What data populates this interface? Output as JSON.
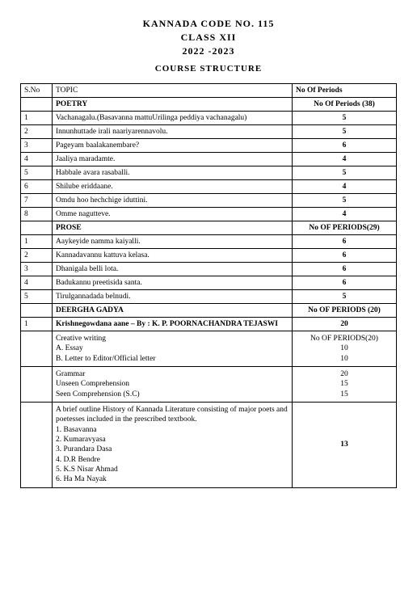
{
  "header": {
    "line1": "KANNADA  CODE  NO. 115",
    "line2": "CLASS  XII",
    "line3": "2022 -2023",
    "structure": "COURSE  STRUCTURE"
  },
  "table": {
    "head": {
      "sno": "S.No",
      "topic": "TOPIC",
      "periods": "No Of Periods"
    },
    "sections": {
      "poetry": {
        "title": "POETRY",
        "periods_label": "No Of Periods (38)",
        "rows": [
          {
            "sno": "1",
            "topic": "Vachanagalu.(Basavanna mattuUrilinga peddiya vachanagalu)",
            "periods": "5"
          },
          {
            "sno": "2",
            "topic": "Innunhuttade irali naariyarennavolu.",
            "periods": "5"
          },
          {
            "sno": "3",
            "topic": "Pageyam baalakanembare?",
            "periods": "6"
          },
          {
            "sno": "4",
            "topic": "Jaaliya maradamte.",
            "periods": "4"
          },
          {
            "sno": "5",
            "topic": "Habbale avara rasaballi.",
            "periods": "5"
          },
          {
            "sno": "6",
            "topic": "Shilube  eriddaane.",
            "periods": "4"
          },
          {
            "sno": "7",
            "topic": "Omdu hoo hechchige iduttini.",
            "periods": "5"
          },
          {
            "sno": "8",
            "topic": "Omme nagutteve.",
            "periods": "4"
          }
        ]
      },
      "prose": {
        "title": "PROSE",
        "periods_label": "No OF PERIODS(29)",
        "rows": [
          {
            "sno": "1",
            "topic": "Aaykeyide namma kaiyalli.",
            "periods": "6"
          },
          {
            "sno": "2",
            "topic": "Kannadavannu kattuva kelasa.",
            "periods": "6"
          },
          {
            "sno": "3",
            "topic": "Dhanigala belli lota.",
            "periods": "6"
          },
          {
            "sno": "4",
            "topic": "Badukannu preetisida santa.",
            "periods": "6"
          },
          {
            "sno": "5",
            "topic": "Tirulgannadada belnudi.",
            "periods": "5"
          }
        ]
      },
      "deergha": {
        "title": "DEERGHA GADYA",
        "periods_label": "No OF PERIODS (20)",
        "rows": [
          {
            "sno": "1",
            "topic": "Krishnegowdana aane – By : K. P. POORNACHANDRA TEJASWI",
            "periods": "20"
          }
        ]
      },
      "creative": {
        "label": "Creative writing",
        "a": "A. Essay",
        "b": "B. Letter to Editor/Official letter",
        "periods_label": "No OF PERIODS(20)",
        "a_periods": "10",
        "b_periods": "10"
      },
      "grammar": {
        "label": "Grammar",
        "unseen": "Unseen Comprehension",
        "seen": "Seen Comprehension (S.C)",
        "g_periods": "20",
        "u_periods": "15",
        "s_periods": "15"
      },
      "history": {
        "intro": "A brief outline History of  Kannada Literature consisting of major poets and poetesses  included in the prescribed textbook.",
        "items": [
          "1.  Basavanna",
          "2.  Kumaravyasa",
          "3. Purandara Dasa",
          "4. D.R Bendre",
          "5. K.S Nisar Ahmad",
          "6. Ha Ma Nayak"
        ],
        "periods": "13"
      }
    }
  }
}
